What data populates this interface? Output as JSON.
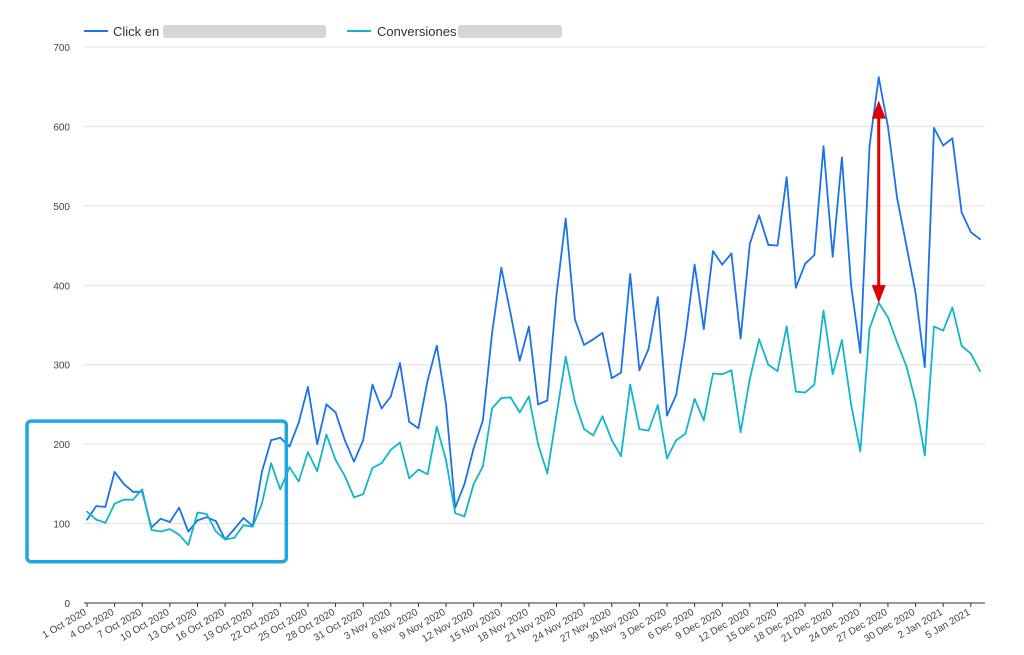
{
  "chart_data": {
    "type": "line",
    "title": "",
    "xlabel": "",
    "ylabel": "",
    "ylim": [
      0,
      700
    ],
    "yticks": [
      0,
      100,
      200,
      300,
      400,
      500,
      600,
      700
    ],
    "grid": true,
    "legend_position": "top-left",
    "x_start": "1 Oct 2020",
    "x_end": "6 Jan 2021",
    "x_tick_labels": [
      "1 Oct 2020",
      "4 Oct 2020",
      "7 Oct 2020",
      "10 Oct 2020",
      "13 Oct 2020",
      "16 Oct 2020",
      "19 Oct 2020",
      "22 Oct 2020",
      "25 Oct 2020",
      "28 Oct 2020",
      "31 Oct 2020",
      "3 Nov 2020",
      "6 Nov 2020",
      "9 Nov 2020",
      "12 Nov 2020",
      "15 Nov 2020",
      "18 Nov 2020",
      "21 Nov 2020",
      "24 Nov 2020",
      "27 Nov 2020",
      "30 Nov 2020",
      "3 Dec 2020",
      "6 Dec 2020",
      "9 Dec 2020",
      "12 Dec 2020",
      "15 Dec 2020",
      "18 Dec 2020",
      "21 Dec 2020",
      "24 Dec 2020",
      "27 Dec 2020",
      "30 Dec 2020",
      "2 Jan 2021",
      "5 Jan 2021"
    ],
    "series": [
      {
        "name": "Click en",
        "color": "#1a73e8",
        "values": [
          105,
          122,
          121,
          165,
          150,
          140,
          140,
          95,
          106,
          102,
          120,
          90,
          104,
          108,
          103,
          80,
          93,
          107,
          97,
          165,
          205,
          208,
          197,
          227,
          272,
          200,
          250,
          240,
          205,
          178,
          205,
          275,
          245,
          260,
          302,
          228,
          220,
          280,
          324,
          250,
          120,
          150,
          195,
          230,
          340,
          422,
          365,
          305,
          348,
          250,
          255,
          388,
          484,
          357,
          325,
          332,
          340,
          283,
          290,
          414,
          293,
          320,
          385,
          236,
          262,
          335,
          426,
          345,
          443,
          426,
          440,
          333,
          452,
          488,
          451,
          450,
          536,
          397,
          427,
          438,
          575,
          436,
          561,
          400,
          315,
          575,
          662,
          600,
          510,
          450,
          390,
          297,
          598,
          576,
          585,
          492,
          467,
          458
        ]
      },
      {
        "name": "Conversiones",
        "color": "#12b5cb",
        "values": [
          115,
          105,
          101,
          125,
          130,
          130,
          143,
          92,
          90,
          93,
          86,
          73,
          114,
          112,
          90,
          80,
          82,
          98,
          96,
          125,
          176,
          143,
          171,
          153,
          190,
          166,
          212,
          180,
          160,
          133,
          137,
          170,
          176,
          193,
          202,
          157,
          168,
          162,
          222,
          180,
          113,
          109,
          150,
          172,
          245,
          258,
          259,
          240,
          260,
          200,
          163,
          237,
          310,
          253,
          219,
          211,
          235,
          205,
          185,
          275,
          219,
          217,
          249,
          182,
          205,
          213,
          257,
          230,
          289,
          288,
          293,
          215,
          282,
          332,
          300,
          292,
          348,
          266,
          265,
          275,
          368,
          288,
          331,
          250,
          191,
          345,
          378,
          360,
          328,
          298,
          253,
          186,
          348,
          343,
          372,
          324,
          314,
          292
        ]
      }
    ],
    "annotations": [
      {
        "type": "double-arrow",
        "color": "#e00000",
        "x_index": 86,
        "y_from": 630,
        "y_to": 380
      },
      {
        "type": "highlight-box",
        "color": "#1fa7e0",
        "x_index_from": 0,
        "x_index_to": 21,
        "y_from": 52,
        "y_to": 229
      }
    ]
  }
}
